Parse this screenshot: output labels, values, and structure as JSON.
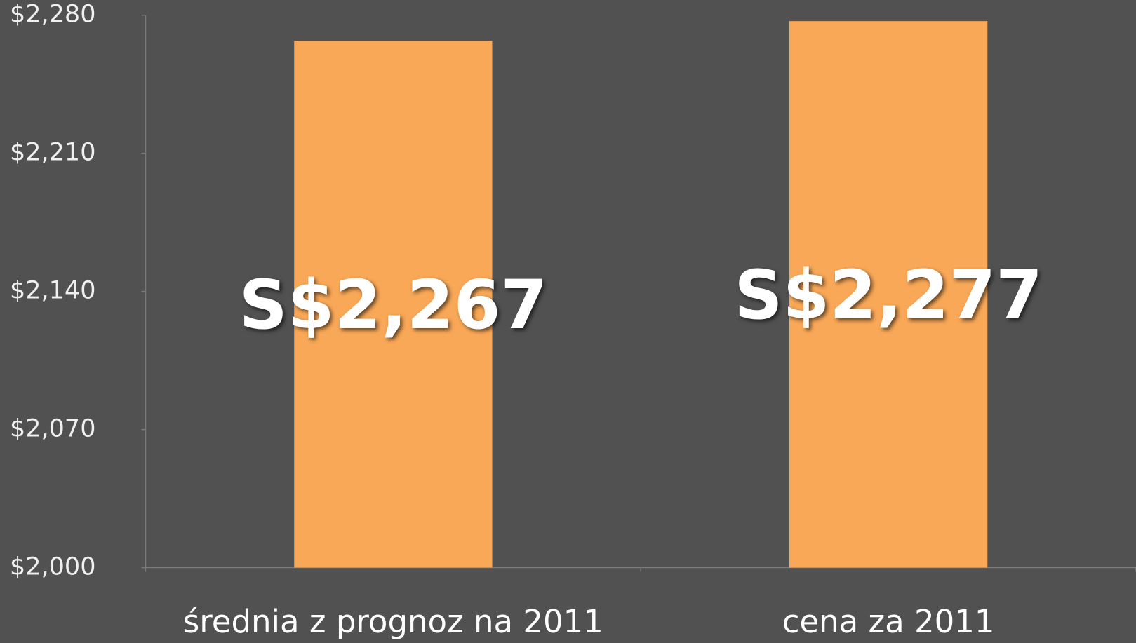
{
  "chart_data": {
    "type": "bar",
    "categories": [
      "średnia z prognoz na 2011",
      "cena za 2011"
    ],
    "values": [
      2267,
      2277
    ],
    "value_labels": [
      "S$2,267",
      "S$2,277"
    ],
    "color": "#f9a857",
    "ylim": [
      2000,
      2280
    ],
    "yticks": [
      {
        "value": 2000,
        "label": "$2,000"
      },
      {
        "value": 2070,
        "label": "$2,070"
      },
      {
        "value": 2140,
        "label": "$2,140"
      },
      {
        "value": 2210,
        "label": "$2,210"
      },
      {
        "value": 2280,
        "label": "$2,280"
      }
    ],
    "grid": false
  }
}
